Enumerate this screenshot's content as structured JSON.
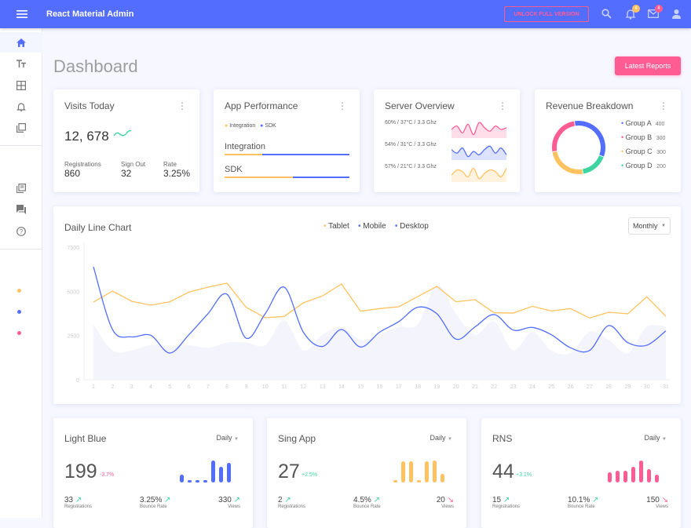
{
  "header": {
    "title": "React Material Admin",
    "unlock_label": "UNLOCK FULL VERSION",
    "notifications_count": "4",
    "messages_count": "4",
    "icons": [
      "menu-icon",
      "search-icon",
      "bell-icon",
      "mail-icon",
      "account-icon"
    ]
  },
  "sidebar": {
    "items": [
      "home",
      "typography",
      "tables",
      "notifications",
      "ui-elements",
      "library",
      "support",
      "faq"
    ],
    "dots": [
      "#FFC260",
      "#536DFE",
      "#FF5C93"
    ]
  },
  "page": {
    "title": "Dashboard",
    "latest_reports_label": "Latest Reports"
  },
  "colors": {
    "primary": "#536DFE",
    "secondary": "#FF5C93",
    "warning": "#FFC260",
    "success": "#3CD4A0"
  },
  "visits": {
    "title": "Visits Today",
    "value": "12, 678",
    "stats": [
      {
        "label": "Registrations",
        "value": "860"
      },
      {
        "label": "Sign Out",
        "value": "32"
      },
      {
        "label": "Rate",
        "value": "3.25%"
      }
    ]
  },
  "performance": {
    "title": "App Performance",
    "legend": [
      "Integration",
      "SDK"
    ],
    "bars": [
      {
        "label": "Integration",
        "progress": 30
      },
      {
        "label": "SDK",
        "progress": 55
      }
    ]
  },
  "server": {
    "title": "Server Overview",
    "rows": [
      {
        "text": "60% / 37°C / 3.3 Ghz",
        "color": "#FF5C93"
      },
      {
        "text": "54% / 31°C / 3.3 Ghz",
        "color": "#536DFE"
      },
      {
        "text": "57% / 21°C / 3.3 Ghz",
        "color": "#FFC260"
      }
    ]
  },
  "revenue": {
    "title": "Revenue Breakdown",
    "groups": [
      {
        "name": "Group A",
        "value": "400",
        "color": "#536DFE"
      },
      {
        "name": "Group B",
        "value": "300",
        "color": "#FF5C93"
      },
      {
        "name": "Group C",
        "value": "300",
        "color": "#FFC260"
      },
      {
        "name": "Group D",
        "value": "200",
        "color": "#3CD4A0"
      }
    ]
  },
  "daily": {
    "title": "Daily Line Chart",
    "legend": [
      "Tablet",
      "Mobile",
      "Desktop"
    ],
    "select": "Monthly"
  },
  "chart_data": {
    "type": "line",
    "x": [
      1,
      2,
      3,
      4,
      5,
      6,
      7,
      8,
      9,
      10,
      11,
      12,
      13,
      14,
      15,
      16,
      17,
      18,
      19,
      20,
      21,
      22,
      23,
      24,
      25,
      26,
      27,
      28,
      29,
      30,
      31
    ],
    "ylim": [
      0,
      7500
    ],
    "yticks": [
      "0",
      "2500",
      "5000",
      "7500"
    ],
    "series": [
      {
        "name": "Tablet",
        "type": "line",
        "color": "#FFC260",
        "values": [
          4390,
          5015,
          4440,
          4215,
          4410,
          4955,
          5235,
          5460,
          4100,
          3505,
          3580,
          4350,
          4735,
          5415,
          3875,
          4025,
          4130,
          4705,
          5280,
          4410,
          4525,
          3785,
          3770,
          4155,
          3890,
          4025,
          3490,
          3815,
          3730,
          4690,
          3580
        ]
      },
      {
        "name": "Mobile",
        "type": "spline",
        "color": "#536DFE",
        "values": [
          6390,
          2840,
          2425,
          2515,
          1510,
          2545,
          3730,
          4835,
          2350,
          3730,
          5235,
          2690,
          1880,
          2840,
          1850,
          2690,
          3285,
          4100,
          3730,
          2295,
          2990,
          3685,
          2810,
          2960,
          2545,
          1805,
          1655,
          3060,
          2100,
          1950,
          2765
        ]
      },
      {
        "name": "Desktop",
        "type": "area",
        "color": "#F3F4FC",
        "values": [
          3135,
          1655,
          1655,
          1950,
          1880,
          1950,
          1805,
          2100,
          2100,
          1950,
          3360,
          1655,
          2545,
          2990,
          2250,
          2545,
          2990,
          3135,
          5355,
          3730,
          2545,
          3285,
          1655,
          2700,
          1655,
          1510,
          2700,
          2250,
          1510,
          2990,
          2990
        ]
      }
    ]
  },
  "stats_cards": [
    {
      "title": "Light Blue",
      "period": "Daily",
      "value": "199",
      "change": "-3.7%",
      "change_color": "#FF5C93",
      "color": "#536DFE",
      "bars": [
        35,
        8,
        3,
        3,
        100,
        70,
        90
      ],
      "footer": [
        {
          "value": "33",
          "label": "Registrations",
          "trend": "up"
        },
        {
          "value": "3.25%",
          "label": "Bounce Rate",
          "trend": "up"
        },
        {
          "value": "330",
          "label": "Views",
          "trend": "up"
        }
      ]
    },
    {
      "title": "Sing App",
      "period": "Daily",
      "value": "27",
      "change": "+2.5%",
      "change_color": "#3CD4A0",
      "color": "#FFC260",
      "bars": [
        3,
        95,
        95,
        5,
        95,
        100,
        40
      ],
      "footer": [
        {
          "value": "2",
          "label": "Registrations",
          "trend": "up"
        },
        {
          "value": "4.5%",
          "label": "Bounce Rate",
          "trend": "up"
        },
        {
          "value": "20",
          "label": "Views",
          "trend": "down"
        }
      ]
    },
    {
      "title": "RNS",
      "period": "Daily",
      "value": "44",
      "change": "+3.1%",
      "change_color": "#3CD4A0",
      "color": "#FF5C93",
      "bars": [
        45,
        55,
        55,
        70,
        100,
        60,
        35
      ],
      "footer": [
        {
          "value": "15",
          "label": "Registrations",
          "trend": "up"
        },
        {
          "value": "10.1%",
          "label": "Bounce Rate",
          "trend": "up"
        },
        {
          "value": "150",
          "label": "Views",
          "trend": "down"
        }
      ]
    }
  ]
}
